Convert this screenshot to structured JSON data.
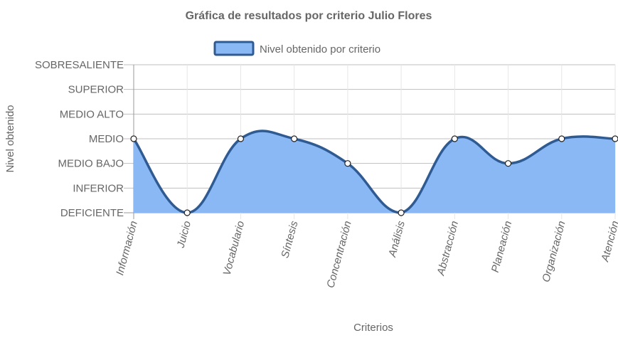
{
  "chart_data": {
    "type": "area",
    "title": "Gráfica de resultados por criterio Julio Flores",
    "xlabel": "Criterios",
    "ylabel": "Nivel obtenido",
    "levels": [
      "DEFICIENTE",
      "INFERIOR",
      "MEDIO BAJO",
      "MEDIO",
      "MEDIO ALTO",
      "SUPERIOR",
      "SOBRESALIENTE"
    ],
    "categories": [
      "Información",
      "Juicio",
      "Vocabulario",
      "Síntesis",
      "Concentración",
      "Análisis",
      "Abstracción",
      "Planeación",
      "Organización",
      "Atención"
    ],
    "series": [
      {
        "name": "Nivel obtenido por criterio",
        "values": [
          "MEDIO",
          "DEFICIENTE",
          "MEDIO",
          "MEDIO",
          "MEDIO BAJO",
          "DEFICIENTE",
          "MEDIO",
          "MEDIO BAJO",
          "MEDIO",
          "MEDIO"
        ]
      }
    ],
    "legend_position": "top",
    "grid": true,
    "colors": {
      "fill": "#89b8f5",
      "line": "#2f5b92",
      "point_fill": "#ffffff",
      "grid": "#e6e6e6",
      "axis": "#999999"
    }
  }
}
